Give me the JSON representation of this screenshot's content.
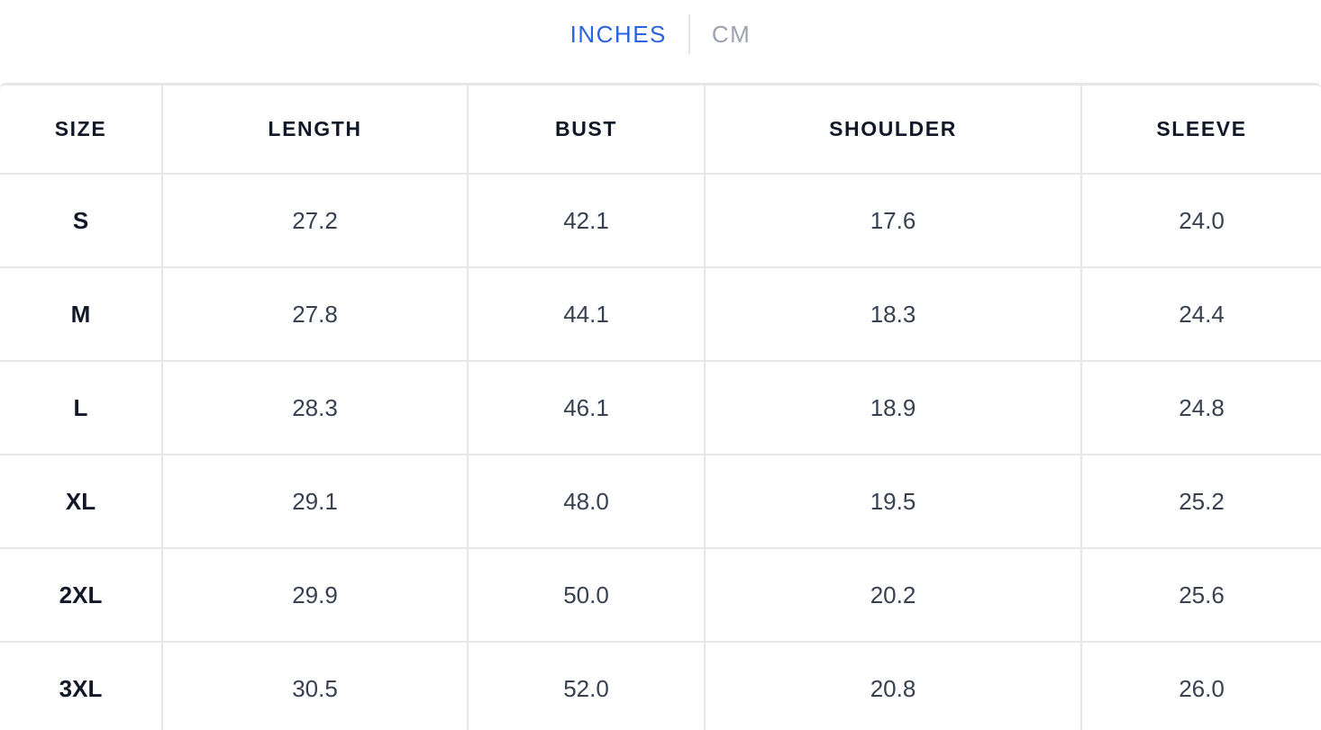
{
  "unit_toggle": {
    "active": "INCHES",
    "inactive": "CM"
  },
  "table": {
    "headers": [
      "SIZE",
      "LENGTH",
      "BUST",
      "SHOULDER",
      "SLEEVE"
    ],
    "rows": [
      [
        "S",
        "27.2",
        "42.1",
        "17.6",
        "24.0"
      ],
      [
        "M",
        "27.8",
        "44.1",
        "18.3",
        "24.4"
      ],
      [
        "L",
        "28.3",
        "46.1",
        "18.9",
        "24.8"
      ],
      [
        "XL",
        "29.1",
        "48.0",
        "19.5",
        "25.2"
      ],
      [
        "2XL",
        "29.9",
        "50.0",
        "20.2",
        "25.6"
      ],
      [
        "3XL",
        "30.5",
        "52.0",
        "20.8",
        "26.0"
      ]
    ]
  },
  "colors": {
    "accent": "#2b63e0",
    "muted": "#9ca3af",
    "border": "#e5e7eb",
    "heading": "#111827",
    "body": "#374151"
  }
}
